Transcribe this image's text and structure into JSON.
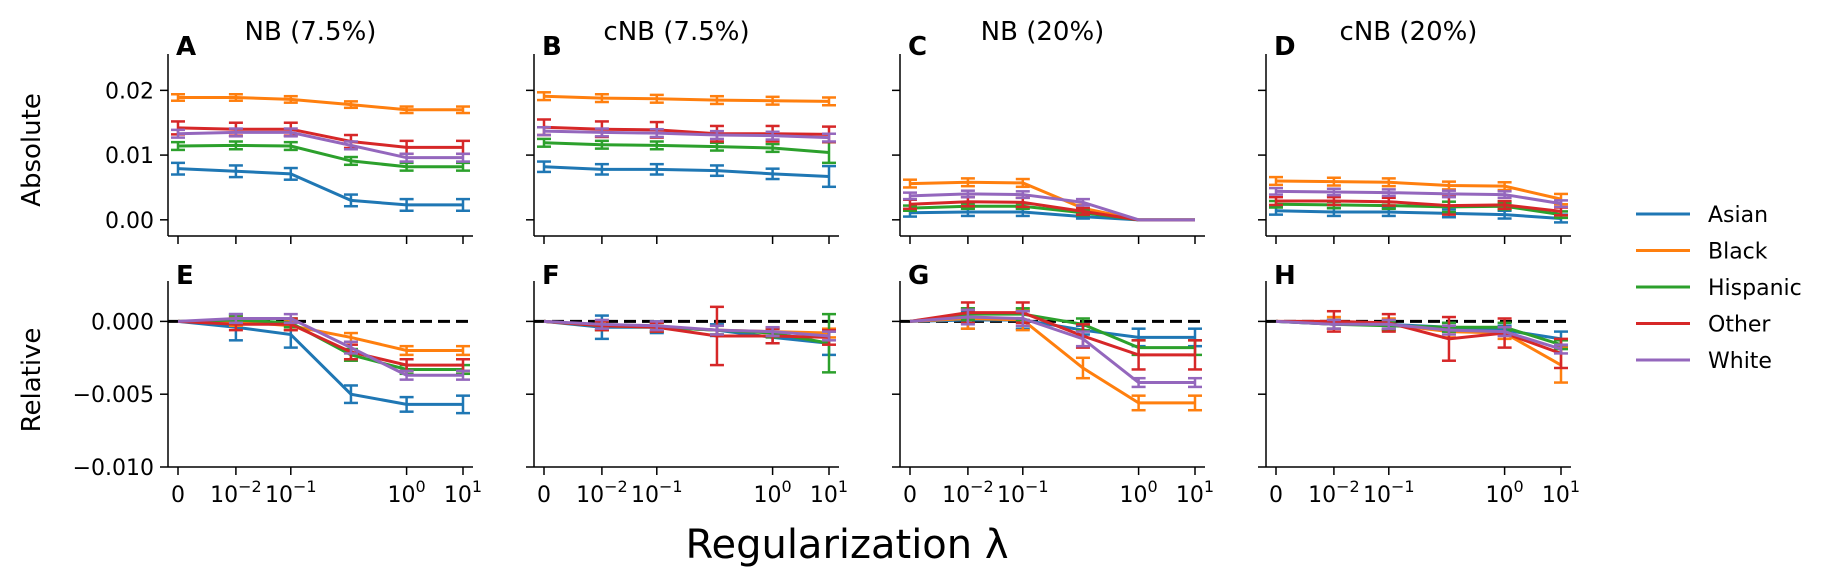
{
  "figure": {
    "xlabel": "Regularization λ",
    "row_labels": [
      "Absolute",
      "Relative"
    ]
  },
  "x_ticks": [
    {
      "base": "0",
      "exp": ""
    },
    {
      "base": "10",
      "exp": "−2"
    },
    {
      "base": "10",
      "exp": "−1"
    },
    {
      "base": "10",
      "exp": "0"
    },
    {
      "base": "10",
      "exp": "1"
    }
  ],
  "legend": {
    "placement": "right",
    "entries": [
      {
        "name": "Asian",
        "color": "#1f77b4"
      },
      {
        "name": "Black",
        "color": "#ff7f0e"
      },
      {
        "name": "Hispanic",
        "color": "#2ca02c"
      },
      {
        "name": "Other",
        "color": "#d62728"
      },
      {
        "name": "White",
        "color": "#9467bd"
      }
    ]
  },
  "chart_data": [
    {
      "panel": "A",
      "title": "NB (7.5%)",
      "type": "line",
      "ylabel": "Absolute",
      "ylim": [
        -0.0025,
        0.025
      ],
      "yticks": [
        "0.00",
        "0.01",
        "0.02"
      ],
      "ytick_values": [
        0,
        0.01,
        0.02
      ],
      "x": [
        0,
        0.01,
        0.06,
        0.35,
        2,
        10
      ],
      "series": [
        {
          "name": "Asian",
          "values": [
            0.0079,
            0.0075,
            0.0071,
            0.003,
            0.0023,
            0.0023
          ],
          "err": [
            0.0009,
            0.0009,
            0.0009,
            0.0009,
            0.0009,
            0.0009
          ]
        },
        {
          "name": "Black",
          "values": [
            0.0189,
            0.0189,
            0.0186,
            0.0178,
            0.017,
            0.017
          ],
          "err": [
            0.0005,
            0.0005,
            0.0005,
            0.0005,
            0.0005,
            0.0005
          ]
        },
        {
          "name": "Hispanic",
          "values": [
            0.0114,
            0.0115,
            0.0114,
            0.0091,
            0.0082,
            0.0082
          ],
          "err": [
            0.0006,
            0.0006,
            0.0006,
            0.0006,
            0.0006,
            0.0006
          ]
        },
        {
          "name": "Other",
          "values": [
            0.0142,
            0.014,
            0.014,
            0.0121,
            0.0112,
            0.0112
          ],
          "err": [
            0.001,
            0.001,
            0.001,
            0.001,
            0.001,
            0.001
          ]
        },
        {
          "name": "White",
          "values": [
            0.0133,
            0.0135,
            0.0135,
            0.0115,
            0.0096,
            0.0096
          ],
          "err": [
            0.0006,
            0.0006,
            0.0006,
            0.0006,
            0.0006,
            0.0006
          ]
        }
      ]
    },
    {
      "panel": "B",
      "title": "cNB (7.5%)",
      "type": "line",
      "ylabel": "",
      "ylim": [
        -0.0025,
        0.025
      ],
      "yticks": [
        "",
        "",
        ""
      ],
      "ytick_values": [
        0,
        0.01,
        0.02
      ],
      "x": [
        0,
        0.01,
        0.06,
        0.35,
        2,
        10
      ],
      "series": [
        {
          "name": "Asian",
          "values": [
            0.0082,
            0.0078,
            0.0078,
            0.0076,
            0.0071,
            0.0067
          ],
          "err": [
            0.0008,
            0.0008,
            0.0008,
            0.0008,
            0.0008,
            0.0016
          ]
        },
        {
          "name": "Black",
          "values": [
            0.0191,
            0.0188,
            0.0187,
            0.0185,
            0.0184,
            0.0183
          ],
          "err": [
            0.0006,
            0.0006,
            0.0006,
            0.0006,
            0.0006,
            0.0006
          ]
        },
        {
          "name": "Hispanic",
          "values": [
            0.0119,
            0.0116,
            0.0115,
            0.0113,
            0.0111,
            0.0104
          ],
          "err": [
            0.0006,
            0.0006,
            0.0006,
            0.0006,
            0.0006,
            0.0016
          ]
        },
        {
          "name": "Other",
          "values": [
            0.0143,
            0.014,
            0.0139,
            0.0133,
            0.0133,
            0.0132
          ],
          "err": [
            0.0012,
            0.0012,
            0.0012,
            0.0012,
            0.0012,
            0.0012
          ]
        },
        {
          "name": "White",
          "values": [
            0.0137,
            0.0135,
            0.0134,
            0.0131,
            0.013,
            0.0127
          ],
          "err": [
            0.0006,
            0.0006,
            0.0006,
            0.0006,
            0.0006,
            0.0006
          ]
        }
      ]
    },
    {
      "panel": "C",
      "title": "NB (20%)",
      "type": "line",
      "ylabel": "",
      "ylim": [
        -0.0025,
        0.025
      ],
      "yticks": [
        "",
        "",
        ""
      ],
      "ytick_values": [
        0,
        0.01,
        0.02
      ],
      "x": [
        0,
        0.01,
        0.06,
        0.35,
        2,
        10
      ],
      "series": [
        {
          "name": "Asian",
          "values": [
            0.0011,
            0.0012,
            0.0012,
            0.0005,
            0.0,
            0.0
          ],
          "err": [
            0.0006,
            0.0006,
            0.0006,
            0.0003,
            0.0,
            0.0
          ]
        },
        {
          "name": "Black",
          "values": [
            0.0056,
            0.0058,
            0.0057,
            0.0018,
            0.0,
            0.0
          ],
          "err": [
            0.0006,
            0.0006,
            0.0006,
            0.0005,
            0.0,
            0.0
          ]
        },
        {
          "name": "Hispanic",
          "values": [
            0.0018,
            0.0021,
            0.0021,
            0.0011,
            0.0,
            0.0
          ],
          "err": [
            0.0004,
            0.0004,
            0.0004,
            0.0004,
            0.0,
            0.0
          ]
        },
        {
          "name": "Other",
          "values": [
            0.0024,
            0.0028,
            0.0027,
            0.0013,
            0.0,
            0.0
          ],
          "err": [
            0.0007,
            0.0007,
            0.0007,
            0.0005,
            0.0,
            0.0
          ]
        },
        {
          "name": "White",
          "values": [
            0.0037,
            0.004,
            0.0039,
            0.0027,
            0.0,
            0.0
          ],
          "err": [
            0.0005,
            0.0005,
            0.0005,
            0.0005,
            0.0,
            0.0
          ]
        }
      ]
    },
    {
      "panel": "D",
      "title": "cNB (20%)",
      "type": "line",
      "ylabel": "",
      "ylim": [
        -0.0025,
        0.025
      ],
      "yticks": [
        "",
        "",
        ""
      ],
      "ytick_values": [
        0,
        0.01,
        0.02
      ],
      "x": [
        0,
        0.01,
        0.06,
        0.35,
        2,
        10
      ],
      "series": [
        {
          "name": "Asian",
          "values": [
            0.0014,
            0.0012,
            0.0012,
            0.001,
            0.0008,
            0.0002
          ],
          "err": [
            0.0006,
            0.0006,
            0.0006,
            0.0006,
            0.0006,
            0.0006
          ]
        },
        {
          "name": "Black",
          "values": [
            0.006,
            0.0059,
            0.0058,
            0.0053,
            0.0052,
            0.0032
          ],
          "err": [
            0.0006,
            0.0006,
            0.0006,
            0.0006,
            0.0006,
            0.0008
          ]
        },
        {
          "name": "Hispanic",
          "values": [
            0.0024,
            0.0023,
            0.0022,
            0.002,
            0.0021,
            0.0008
          ],
          "err": [
            0.0005,
            0.0005,
            0.0005,
            0.0008,
            0.0005,
            0.0005
          ]
        },
        {
          "name": "Other",
          "values": [
            0.0029,
            0.0029,
            0.0028,
            0.0022,
            0.0023,
            0.0013
          ],
          "err": [
            0.0006,
            0.0006,
            0.0006,
            0.0014,
            0.0006,
            0.0006
          ]
        },
        {
          "name": "White",
          "values": [
            0.0044,
            0.0043,
            0.0042,
            0.004,
            0.0039,
            0.0025
          ],
          "err": [
            0.0005,
            0.0005,
            0.0005,
            0.0005,
            0.0005,
            0.0005
          ]
        }
      ]
    },
    {
      "panel": "E",
      "title": "",
      "type": "line",
      "ylabel": "Relative",
      "ylim": [
        -0.01,
        0.0025
      ],
      "yticks": [
        "−0.010",
        "−0.005",
        "0.000"
      ],
      "ytick_values": [
        -0.01,
        -0.005,
        0
      ],
      "x": [
        0,
        0.01,
        0.06,
        0.35,
        2,
        10
      ],
      "reference_line": 0,
      "series": [
        {
          "name": "Asian",
          "values": [
            0,
            -0.0004,
            -0.0009,
            -0.005,
            -0.0057,
            -0.0057
          ],
          "err": [
            0,
            0.0009,
            0.0009,
            0.0006,
            0.0005,
            0.0006
          ]
        },
        {
          "name": "Black",
          "values": [
            0,
            0.0,
            -0.0003,
            -0.0011,
            -0.002,
            -0.002
          ],
          "err": [
            0,
            0.0003,
            0.0003,
            0.0003,
            0.0003,
            0.0003
          ]
        },
        {
          "name": "Hispanic",
          "values": [
            0,
            0.0001,
            -0.0001,
            -0.0023,
            -0.0033,
            -0.0033
          ],
          "err": [
            0,
            0.0003,
            0.0003,
            0.0004,
            0.0003,
            0.0003
          ]
        },
        {
          "name": "Other",
          "values": [
            0,
            -0.0002,
            -0.0002,
            -0.0021,
            -0.003,
            -0.003
          ],
          "err": [
            0,
            0.0004,
            0.0004,
            0.0005,
            0.0004,
            0.0004
          ]
        },
        {
          "name": "White",
          "values": [
            0,
            0.0002,
            0.0002,
            -0.0018,
            -0.0037,
            -0.0037
          ],
          "err": [
            0,
            0.0003,
            0.0003,
            0.0004,
            0.0003,
            0.0003
          ]
        }
      ]
    },
    {
      "panel": "F",
      "title": "",
      "type": "line",
      "ylabel": "",
      "ylim": [
        -0.01,
        0.0025
      ],
      "yticks": [
        "",
        "",
        ""
      ],
      "ytick_values": [
        -0.01,
        -0.005,
        0
      ],
      "x": [
        0,
        0.01,
        0.06,
        0.35,
        2,
        10
      ],
      "reference_line": 0,
      "series": [
        {
          "name": "Asian",
          "values": [
            0,
            -0.0004,
            -0.0004,
            -0.0006,
            -0.0011,
            -0.0015
          ],
          "err": [
            0,
            0.0008,
            0.0004,
            0.0004,
            0.0004,
            0.0008
          ]
        },
        {
          "name": "Black",
          "values": [
            0,
            -0.0003,
            -0.0004,
            -0.0006,
            -0.0007,
            -0.0008
          ],
          "err": [
            0,
            0.0003,
            0.0003,
            0.0003,
            0.0003,
            0.0003
          ]
        },
        {
          "name": "Hispanic",
          "values": [
            0,
            -0.0003,
            -0.0004,
            -0.0006,
            -0.0008,
            -0.0015
          ],
          "err": [
            0,
            0.0003,
            0.0003,
            0.0003,
            0.0003,
            0.002
          ]
        },
        {
          "name": "Other",
          "values": [
            0,
            -0.0003,
            -0.0004,
            -0.001,
            -0.001,
            -0.0011
          ],
          "err": [
            0,
            0.0003,
            0.0003,
            0.002,
            0.0005,
            0.0005
          ]
        },
        {
          "name": "White",
          "values": [
            0,
            -0.0002,
            -0.0003,
            -0.0006,
            -0.0007,
            -0.001
          ],
          "err": [
            0,
            0.0003,
            0.0003,
            0.0003,
            0.0003,
            0.0003
          ]
        }
      ]
    },
    {
      "panel": "G",
      "title": "",
      "type": "line",
      "ylabel": "",
      "ylim": [
        -0.01,
        0.0025
      ],
      "yticks": [
        "",
        "",
        ""
      ],
      "ytick_values": [
        -0.01,
        -0.005,
        0
      ],
      "x": [
        0,
        0.01,
        0.06,
        0.35,
        2,
        10
      ],
      "reference_line": 0,
      "series": [
        {
          "name": "Asian",
          "values": [
            0,
            0.0001,
            0.0001,
            -0.0006,
            -0.0011,
            -0.0011
          ],
          "err": [
            0,
            0.0006,
            0.0006,
            0.0003,
            0.0006,
            0.0006
          ]
        },
        {
          "name": "Black",
          "values": [
            0,
            0.0002,
            0.0001,
            -0.0032,
            -0.0056,
            -0.0056
          ],
          "err": [
            0,
            0.0007,
            0.0007,
            0.0007,
            0.0005,
            0.0005
          ]
        },
        {
          "name": "Hispanic",
          "values": [
            0,
            0.0005,
            0.0005,
            -0.0002,
            -0.0018,
            -0.0018
          ],
          "err": [
            0,
            0.0004,
            0.0004,
            0.0004,
            0.0005,
            0.0005
          ]
        },
        {
          "name": "Other",
          "values": [
            0,
            0.0006,
            0.0006,
            -0.001,
            -0.0023,
            -0.0023
          ],
          "err": [
            0,
            0.0007,
            0.0007,
            0.0008,
            0.001,
            0.001
          ]
        },
        {
          "name": "White",
          "values": [
            0,
            0.0003,
            0.0002,
            -0.0012,
            -0.0042,
            -0.0042
          ],
          "err": [
            0,
            0.0005,
            0.0005,
            0.0005,
            0.0003,
            0.0003
          ]
        }
      ]
    },
    {
      "panel": "H",
      "title": "",
      "type": "line",
      "ylabel": "",
      "ylim": [
        -0.01,
        0.0025
      ],
      "yticks": [
        "",
        "",
        ""
      ],
      "ytick_values": [
        -0.01,
        -0.005,
        0
      ],
      "x": [
        0,
        0.01,
        0.06,
        0.35,
        2,
        10
      ],
      "reference_line": 0,
      "series": [
        {
          "name": "Asian",
          "values": [
            0,
            -0.0002,
            -0.0002,
            -0.0004,
            -0.0006,
            -0.0012
          ],
          "err": [
            0,
            0.0003,
            0.0003,
            0.0003,
            0.0003,
            0.0005
          ]
        },
        {
          "name": "Black",
          "values": [
            0,
            -0.0001,
            -0.0002,
            -0.0007,
            -0.0008,
            -0.003
          ],
          "err": [
            0,
            0.0004,
            0.0004,
            0.0004,
            0.0004,
            0.0012
          ]
        },
        {
          "name": "Hispanic",
          "values": [
            0,
            -0.0002,
            -0.0003,
            -0.0004,
            -0.0004,
            -0.0016
          ],
          "err": [
            0,
            0.0003,
            0.0003,
            0.0003,
            0.0003,
            0.0003
          ]
        },
        {
          "name": "Other",
          "values": [
            0,
            0.0,
            -0.0001,
            -0.0012,
            -0.0008,
            -0.0022
          ],
          "err": [
            0,
            0.0007,
            0.0006,
            0.0015,
            0.001,
            0.001
          ]
        },
        {
          "name": "White",
          "values": [
            0,
            -0.0002,
            -0.0002,
            -0.0006,
            -0.0007,
            -0.0019
          ],
          "err": [
            0,
            0.0003,
            0.0003,
            0.0003,
            0.0003,
            0.0003
          ]
        }
      ]
    }
  ]
}
